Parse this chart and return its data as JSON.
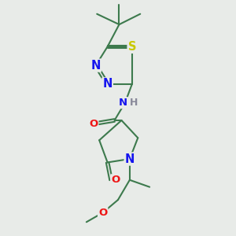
{
  "fig_bg": "#e8ebe8",
  "bond_color": "#3d7a4d",
  "bond_width": 1.5,
  "dbo": 0.06,
  "atom_colors": {
    "N": "#1515ee",
    "O": "#ee1515",
    "S": "#c8c800",
    "H": "#888899",
    "C": "#3d7a4d"
  },
  "afs": 9.5
}
